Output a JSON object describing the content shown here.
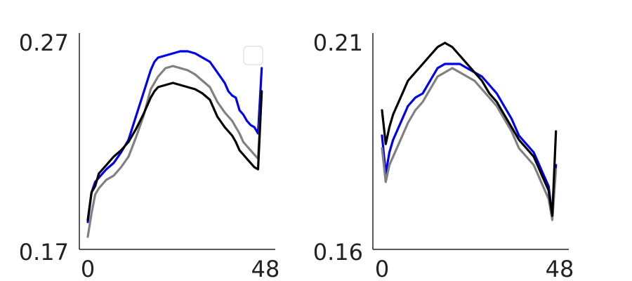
{
  "chart_data": [
    {
      "type": "line",
      "ylim": [
        0.17,
        0.27
      ],
      "xlim": [
        0,
        48
      ],
      "x_ticks": [
        "0",
        "48"
      ],
      "y_ticks": [
        "0.17",
        "0.27"
      ],
      "legend": "top-right",
      "grid": false,
      "series": [
        {
          "color": "#0000ee",
          "points": [
            [
              0,
              0.183
            ],
            [
              1,
              0.197
            ],
            [
              2,
              0.202
            ],
            [
              3,
              0.204
            ],
            [
              5,
              0.208
            ],
            [
              7,
              0.211
            ],
            [
              9,
              0.216
            ],
            [
              11,
              0.222
            ],
            [
              13,
              0.233
            ],
            [
              15,
              0.244
            ],
            [
              17,
              0.255
            ],
            [
              18,
              0.259
            ],
            [
              19,
              0.261
            ],
            [
              21,
              0.262
            ],
            [
              23,
              0.263
            ],
            [
              25,
              0.264
            ],
            [
              27,
              0.264
            ],
            [
              29,
              0.263
            ],
            [
              31,
              0.261
            ],
            [
              33,
              0.259
            ],
            [
              35,
              0.254
            ],
            [
              37,
              0.249
            ],
            [
              38,
              0.245
            ],
            [
              39,
              0.243
            ],
            [
              40,
              0.242
            ],
            [
              41,
              0.236
            ],
            [
              42,
              0.234
            ],
            [
              43,
              0.231
            ],
            [
              44,
              0.229
            ],
            [
              45,
              0.228
            ],
            [
              46,
              0.225
            ],
            [
              47,
              0.256
            ]
          ]
        },
        {
          "color": "#808080",
          "points": [
            [
              0,
              0.176
            ],
            [
              1,
              0.187
            ],
            [
              2,
              0.196
            ],
            [
              3,
              0.199
            ],
            [
              5,
              0.203
            ],
            [
              7,
              0.205
            ],
            [
              9,
              0.209
            ],
            [
              11,
              0.214
            ],
            [
              13,
              0.223
            ],
            [
              15,
              0.233
            ],
            [
              17,
              0.246
            ],
            [
              18,
              0.249
            ],
            [
              19,
              0.252
            ],
            [
              21,
              0.256
            ],
            [
              23,
              0.257
            ],
            [
              25,
              0.256
            ],
            [
              27,
              0.255
            ],
            [
              29,
              0.253
            ],
            [
              31,
              0.25
            ],
            [
              33,
              0.247
            ],
            [
              35,
              0.24
            ],
            [
              37,
              0.235
            ],
            [
              38,
              0.233
            ],
            [
              39,
              0.231
            ],
            [
              40,
              0.228
            ],
            [
              41,
              0.225
            ],
            [
              42,
              0.221
            ],
            [
              43,
              0.219
            ],
            [
              44,
              0.217
            ],
            [
              45,
              0.215
            ],
            [
              46,
              0.213
            ],
            [
              47,
              0.245
            ]
          ]
        },
        {
          "color": "#000000",
          "points": [
            [
              0,
              0.184
            ],
            [
              1,
              0.197
            ],
            [
              2,
              0.2
            ],
            [
              3,
              0.206
            ],
            [
              5,
              0.21
            ],
            [
              7,
              0.214
            ],
            [
              9,
              0.217
            ],
            [
              11,
              0.221
            ],
            [
              13,
              0.227
            ],
            [
              15,
              0.234
            ],
            [
              17,
              0.242
            ],
            [
              18,
              0.245
            ],
            [
              19,
              0.247
            ],
            [
              21,
              0.248
            ],
            [
              23,
              0.249
            ],
            [
              25,
              0.248
            ],
            [
              27,
              0.247
            ],
            [
              29,
              0.246
            ],
            [
              31,
              0.244
            ],
            [
              33,
              0.241
            ],
            [
              35,
              0.233
            ],
            [
              37,
              0.228
            ],
            [
              38,
              0.226
            ],
            [
              39,
              0.224
            ],
            [
              40,
              0.221
            ],
            [
              41,
              0.217
            ],
            [
              42,
              0.215
            ],
            [
              43,
              0.213
            ],
            [
              44,
              0.211
            ],
            [
              45,
              0.209
            ],
            [
              46,
              0.208
            ],
            [
              47,
              0.245
            ]
          ]
        }
      ]
    },
    {
      "type": "line",
      "ylim": [
        0.16,
        0.21
      ],
      "xlim": [
        0,
        48
      ],
      "x_ticks": [
        "0",
        "48"
      ],
      "y_ticks": [
        "0.16",
        "0.21"
      ],
      "legend": "none",
      "grid": false,
      "series": [
        {
          "color": "#0000ee",
          "points": [
            [
              0,
              0.187
            ],
            [
              1,
              0.178
            ],
            [
              2,
              0.183
            ],
            [
              3,
              0.186
            ],
            [
              5,
              0.19
            ],
            [
              7,
              0.194
            ],
            [
              9,
              0.196
            ],
            [
              11,
              0.197
            ],
            [
              13,
              0.2
            ],
            [
              15,
              0.203
            ],
            [
              17,
              0.204
            ],
            [
              19,
              0.204
            ],
            [
              21,
              0.204
            ],
            [
              23,
              0.203
            ],
            [
              25,
              0.202
            ],
            [
              27,
              0.201
            ],
            [
              29,
              0.199
            ],
            [
              31,
              0.197
            ],
            [
              33,
              0.194
            ],
            [
              35,
              0.191
            ],
            [
              37,
              0.187
            ],
            [
              39,
              0.185
            ],
            [
              41,
              0.183
            ],
            [
              42,
              0.181
            ],
            [
              43,
              0.179
            ],
            [
              44,
              0.177
            ],
            [
              45,
              0.175
            ],
            [
              46,
              0.168
            ],
            [
              47,
              0.18
            ]
          ]
        },
        {
          "color": "#808080",
          "points": [
            [
              0,
              0.184
            ],
            [
              1,
              0.176
            ],
            [
              2,
              0.18
            ],
            [
              3,
              0.182
            ],
            [
              5,
              0.186
            ],
            [
              7,
              0.19
            ],
            [
              9,
              0.193
            ],
            [
              11,
              0.195
            ],
            [
              13,
              0.198
            ],
            [
              15,
              0.201
            ],
            [
              17,
              0.202
            ],
            [
              19,
              0.203
            ],
            [
              21,
              0.202
            ],
            [
              23,
              0.201
            ],
            [
              25,
              0.2
            ],
            [
              27,
              0.198
            ],
            [
              29,
              0.196
            ],
            [
              31,
              0.194
            ],
            [
              33,
              0.191
            ],
            [
              35,
              0.188
            ],
            [
              37,
              0.184
            ],
            [
              39,
              0.182
            ],
            [
              41,
              0.18
            ],
            [
              42,
              0.178
            ],
            [
              43,
              0.176
            ],
            [
              44,
              0.174
            ],
            [
              45,
              0.172
            ],
            [
              46,
              0.167
            ],
            [
              47,
              0.179
            ]
          ]
        },
        {
          "color": "#000000",
          "points": [
            [
              0,
              0.193
            ],
            [
              1,
              0.185
            ],
            [
              2,
              0.189
            ],
            [
              3,
              0.192
            ],
            [
              5,
              0.196
            ],
            [
              7,
              0.2
            ],
            [
              9,
              0.202
            ],
            [
              11,
              0.204
            ],
            [
              13,
              0.206
            ],
            [
              15,
              0.208
            ],
            [
              17,
              0.209
            ],
            [
              19,
              0.208
            ],
            [
              21,
              0.206
            ],
            [
              23,
              0.204
            ],
            [
              25,
              0.202
            ],
            [
              27,
              0.2
            ],
            [
              29,
              0.197
            ],
            [
              31,
              0.195
            ],
            [
              33,
              0.192
            ],
            [
              35,
              0.189
            ],
            [
              37,
              0.186
            ],
            [
              39,
              0.184
            ],
            [
              41,
              0.182
            ],
            [
              42,
              0.18
            ],
            [
              43,
              0.178
            ],
            [
              44,
              0.176
            ],
            [
              45,
              0.174
            ],
            [
              46,
              0.168
            ],
            [
              47,
              0.188
            ]
          ]
        }
      ]
    }
  ]
}
